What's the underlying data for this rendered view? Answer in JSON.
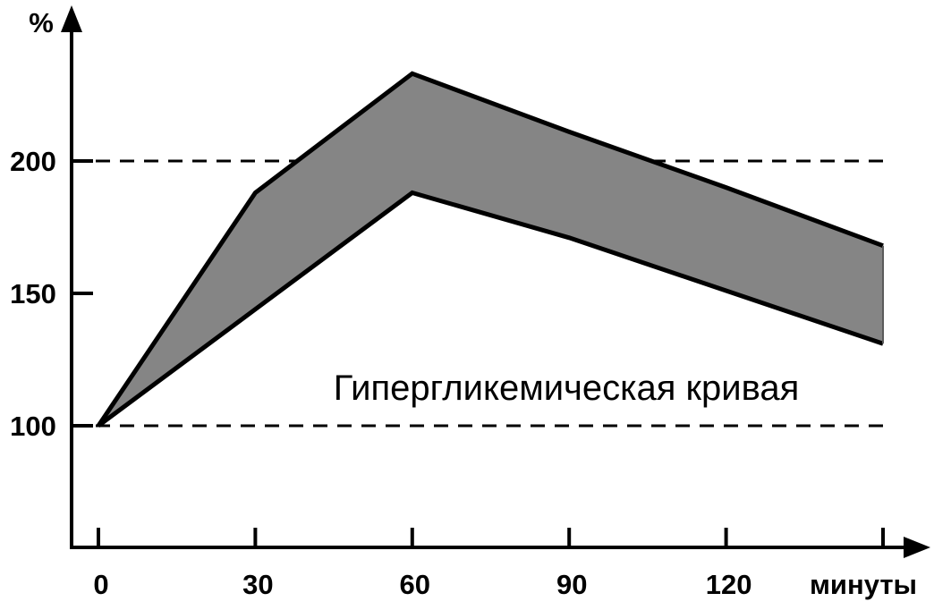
{
  "chart_data": {
    "type": "area",
    "y_unit_label": "%",
    "x_unit_label": "минуты",
    "annotation": "Гипергликемическая кривая",
    "x_ticks": [
      0,
      30,
      60,
      90,
      120,
      150
    ],
    "x_tick_labels": [
      "0",
      "30",
      "60",
      "90",
      "120",
      ""
    ],
    "y_ticks": [
      100,
      150,
      200
    ],
    "y_tick_labels": [
      "100",
      "150",
      "200"
    ],
    "reference_lines": [
      100,
      200
    ],
    "xlim": [
      -5,
      157
    ],
    "ylim": [
      55,
      255
    ],
    "grid": false,
    "band": {
      "x": [
        0,
        30,
        60,
        90,
        120,
        150
      ],
      "upper": [
        100,
        188,
        233,
        211,
        190,
        168
      ],
      "lower": [
        100,
        144,
        188,
        171,
        151,
        131
      ]
    },
    "colors": {
      "fill": "#858585",
      "stroke": "#000000",
      "reference_line": "#000000"
    }
  }
}
